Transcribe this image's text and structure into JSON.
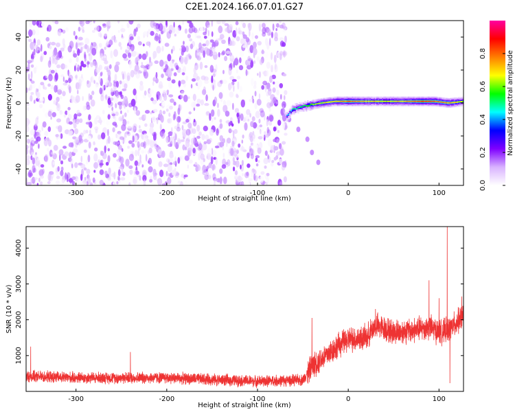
{
  "title": "C2E1.2024.166.07.01.G27",
  "chart_data": [
    {
      "type": "heatmap",
      "xlabel": "Height of straight line (km)",
      "ylabel": "Frequency (Hz)",
      "xlim": [
        -355,
        127
      ],
      "ylim": [
        -50,
        50
      ],
      "x_ticks": [
        -300,
        -200,
        -100,
        0,
        100
      ],
      "y_ticks": [
        -40,
        -20,
        0,
        20,
        40
      ],
      "colorbar": {
        "label": "Normalized spectral amplitude",
        "range": [
          0,
          1
        ],
        "ticks": [
          "0.0",
          "0.2",
          "0.4",
          "0.6",
          "0.8"
        ],
        "colormap": [
          "#ffffff",
          "#d9b3ff",
          "#7f00ff",
          "#0000ff",
          "#00ffff",
          "#00ff00",
          "#ffff00",
          "#ff7f00",
          "#ff0000",
          "#ff00a0"
        ]
      },
      "noise_region_x": [
        -355,
        -68
      ],
      "noise_amplitude_range": [
        0.0,
        0.2
      ],
      "signal_track": [
        {
          "x": -68,
          "y": -8,
          "amp": 0.4
        },
        {
          "x": -62,
          "y": -4,
          "amp": 0.5
        },
        {
          "x": -56,
          "y": -3,
          "amp": 0.5
        },
        {
          "x": -50,
          "y": -2,
          "amp": 0.5
        },
        {
          "x": -40,
          "y": -1,
          "amp": 0.6
        },
        {
          "x": -30,
          "y": 0,
          "amp": 0.65
        },
        {
          "x": -15,
          "y": 1,
          "amp": 0.7
        },
        {
          "x": 0,
          "y": 1,
          "amp": 0.8
        },
        {
          "x": 20,
          "y": 1,
          "amp": 0.7
        },
        {
          "x": 40,
          "y": 1,
          "amp": 0.65
        },
        {
          "x": 60,
          "y": 1,
          "amp": 0.7
        },
        {
          "x": 80,
          "y": 1,
          "amp": 0.85
        },
        {
          "x": 95,
          "y": 1,
          "amp": 0.8
        },
        {
          "x": 110,
          "y": 0,
          "amp": 0.75
        },
        {
          "x": 127,
          "y": 1,
          "amp": 0.6
        }
      ],
      "secondary_trace": [
        {
          "x": -65,
          "y": -10
        },
        {
          "x": -55,
          "y": -16
        },
        {
          "x": -45,
          "y": -22
        },
        {
          "x": -40,
          "y": -30
        },
        {
          "x": -33,
          "y": -36
        }
      ]
    },
    {
      "type": "line",
      "xlabel": "Height of straight line (km)",
      "ylabel": "SNR (10 * v/v)",
      "xlim": [
        -355,
        127
      ],
      "ylim": [
        0,
        4600
      ],
      "x_ticks": [
        -300,
        -200,
        -100,
        0,
        100
      ],
      "y_ticks": [
        1000,
        2000,
        3000,
        4000
      ],
      "color": "#ee3333",
      "baseline_trend": [
        {
          "x": -355,
          "y": 420
        },
        {
          "x": -300,
          "y": 380
        },
        {
          "x": -200,
          "y": 380
        },
        {
          "x": -100,
          "y": 280
        },
        {
          "x": -50,
          "y": 320
        },
        {
          "x": -40,
          "y": 700
        },
        {
          "x": -30,
          "y": 900
        },
        {
          "x": -10,
          "y": 1300
        },
        {
          "x": 0,
          "y": 1450
        },
        {
          "x": 20,
          "y": 1500
        },
        {
          "x": 30,
          "y": 1850
        },
        {
          "x": 50,
          "y": 1650
        },
        {
          "x": 70,
          "y": 1700
        },
        {
          "x": 90,
          "y": 1800
        },
        {
          "x": 100,
          "y": 1650
        },
        {
          "x": 110,
          "y": 1700
        },
        {
          "x": 127,
          "y": 2100
        }
      ],
      "spikes": [
        {
          "x": -350,
          "y": 1250
        },
        {
          "x": -240,
          "y": 1100
        },
        {
          "x": -40,
          "y": 2050
        },
        {
          "x": 30,
          "y": 2300
        },
        {
          "x": 89,
          "y": 3100
        },
        {
          "x": 100,
          "y": 2600
        },
        {
          "x": 109,
          "y": 4600
        },
        {
          "x": 112,
          "y": 230
        },
        {
          "x": 125,
          "y": 2650
        }
      ]
    }
  ]
}
